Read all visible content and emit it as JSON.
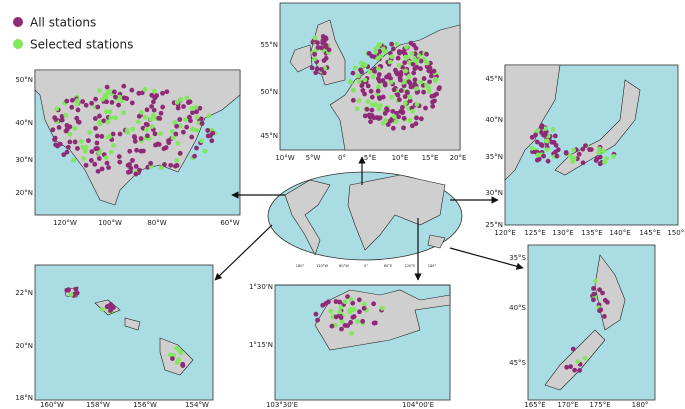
{
  "legend": [
    {
      "label": "All stations",
      "color": "#8e2a76"
    },
    {
      "label": "Selected stations",
      "color": "#7fe85c"
    }
  ],
  "panels": [
    {
      "lat_labels": [
        "50°N",
        "40°N",
        "30°N",
        "20°N"
      ],
      "lon_labels": [
        "120°W",
        "100°W",
        "80°W",
        "60°W"
      ]
    },
    {
      "lat_labels": [
        "55°N",
        "50°N",
        "45°N"
      ],
      "lon_labels": [
        "10°W",
        "5°W",
        "0°",
        "5°E",
        "10°E",
        "15°E",
        "20°E"
      ]
    },
    {
      "lat_labels": [
        "45°N",
        "40°N",
        "35°N",
        "30°N",
        "25°N"
      ],
      "lon_labels": [
        "120°E",
        "125°E",
        "130°E",
        "135°E",
        "140°E",
        "145°E",
        "150°E"
      ]
    },
    {
      "lat_labels": [
        "22°N",
        "20°N",
        "18°N"
      ],
      "lon_labels": [
        "160°W",
        "158°W",
        "156°W",
        "154°W"
      ]
    },
    {
      "lat_labels": [
        "1°30'N",
        "1°15'N"
      ],
      "lon_labels": [
        "103°30'E",
        "104°00'E"
      ]
    },
    {
      "lat_labels": [
        "35°S",
        "40°S",
        "45°S"
      ],
      "lon_labels": [
        "165°E",
        "170°E",
        "175°E",
        "180°"
      ]
    }
  ],
  "world_lon_labels": [
    "180°",
    "120°W",
    "60°W",
    "0°",
    "60°E",
    "120°E",
    "180°"
  ]
}
